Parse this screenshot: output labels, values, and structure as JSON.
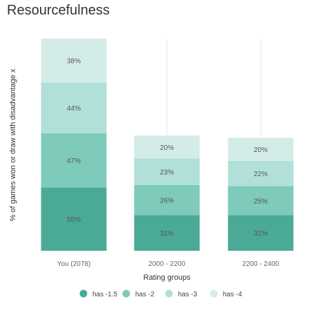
{
  "chart_data": {
    "type": "bar",
    "stacked": true,
    "title": "Resourcefulness",
    "xlabel": "Rating groups",
    "ylabel": "% of games won or draw with disadvantage x",
    "categories": [
      "You (2078)",
      "2000 - 2200",
      "2200 - 2400"
    ],
    "series": [
      {
        "name": "has -1.5",
        "values": [
          55,
          31,
          31
        ],
        "labels": [
          "55%",
          "31%",
          "31%"
        ],
        "color": "#4baa97"
      },
      {
        "name": "has -2",
        "values": [
          47,
          26,
          25
        ],
        "labels": [
          "47%",
          "26%",
          "25%"
        ],
        "color": "#7ecabb"
      },
      {
        "name": "has -3",
        "values": [
          44,
          23,
          22
        ],
        "labels": [
          "44%",
          "23%",
          "22%"
        ],
        "color": "#b1e0d8"
      },
      {
        "name": "has -4",
        "values": [
          38,
          20,
          20
        ],
        "labels": [
          "38%",
          "20%",
          "20%"
        ],
        "color": "#d4ece8"
      }
    ],
    "legend_position": "bottom",
    "grid": "vertical"
  }
}
